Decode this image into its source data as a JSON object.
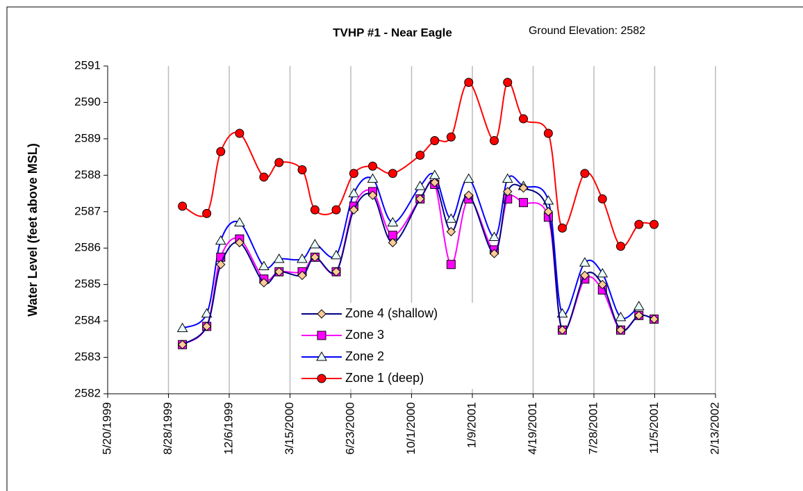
{
  "chart_data": {
    "type": "line",
    "title": "TVHP #1 - Near Eagle",
    "annotation": "Ground Elevation: 2582",
    "y_label": "Water Level (feet above MSL)",
    "x": [
      "9/20/1999",
      "10/30/1999",
      "11/22/1999",
      "12/23/1999",
      "2/1/2000",
      "2/26/2000",
      "4/4/2000",
      "4/25/2000",
      "5/30/2000",
      "6/28/2000",
      "7/29/2000",
      "8/31/2000",
      "10/15/2000",
      "11/8/2000",
      "12/5/2000",
      "1/3/2001",
      "2/14/2001",
      "3/8/2001",
      "4/3/2001",
      "5/14/2001",
      "6/6/2001",
      "7/13/2001",
      "8/11/2001",
      "9/10/2001",
      "10/10/2001",
      "11/4/2001"
    ],
    "xlim": [
      "5/20/1999",
      "2/13/2002"
    ],
    "xticks": [
      "5/20/1999",
      "8/28/1999",
      "12/6/1999",
      "3/15/2000",
      "6/23/2000",
      "10/1/2000",
      "1/9/2001",
      "4/19/2001",
      "7/28/2001",
      "11/5/2001",
      "2/13/2002"
    ],
    "ylim": [
      2582,
      2591
    ],
    "yticks": [
      2582,
      2583,
      2584,
      2585,
      2586,
      2587,
      2588,
      2589,
      2590,
      2591
    ],
    "grid": "x",
    "smooth": true,
    "series": [
      {
        "name": "Zone 4 (shallow)",
        "color": "#000080",
        "marker": "diamond",
        "marker_color": "#FFCC99",
        "values": [
          2583.35,
          2583.85,
          2585.55,
          2586.15,
          2585.05,
          2585.35,
          2585.25,
          2585.75,
          2585.35,
          2587.05,
          2587.45,
          2586.15,
          2587.35,
          2587.8,
          2586.45,
          2587.45,
          2585.85,
          2587.55,
          2587.65,
          2587.0,
          2583.75,
          2585.25,
          2585.0,
          2583.75,
          2584.15,
          2584.05
        ]
      },
      {
        "name": "Zone 3",
        "color": "#FF00FF",
        "marker": "square",
        "marker_color": "#FF00FF",
        "values": [
          2583.35,
          2583.85,
          2585.75,
          2586.25,
          2585.15,
          2585.35,
          2585.35,
          2585.75,
          2585.35,
          2587.15,
          2587.55,
          2586.35,
          2587.35,
          2587.75,
          2585.55,
          2587.35,
          2585.95,
          2587.35,
          2587.25,
          2586.85,
          2583.75,
          2585.15,
          2584.85,
          2583.75,
          2584.15,
          2584.05
        ]
      },
      {
        "name": "Zone 2",
        "color": "#0000FF",
        "marker": "triangle",
        "marker_color": "#E8FFFF",
        "values": [
          2583.8,
          2584.2,
          2586.2,
          2586.7,
          2585.5,
          2585.7,
          2585.7,
          2586.1,
          2585.8,
          2587.5,
          2587.9,
          2586.7,
          2587.7,
          2588.0,
          2586.8,
          2587.9,
          2586.3,
          2587.9,
          2587.7,
          2587.3,
          2584.2,
          2585.6,
          2585.3,
          2584.1,
          2584.4,
          null
        ]
      },
      {
        "name": "Zone 1 (deep)",
        "color": "#FF0000",
        "marker": "circle",
        "marker_color": "#FF0000",
        "values": [
          2587.15,
          2586.95,
          2588.65,
          2589.15,
          2587.95,
          2588.35,
          2588.15,
          2587.05,
          2587.05,
          2588.05,
          2588.25,
          2588.05,
          2588.55,
          2588.95,
          2589.05,
          2590.55,
          2588.95,
          2590.55,
          2589.55,
          2589.15,
          2586.55,
          2588.05,
          2587.35,
          2586.05,
          2586.65,
          2586.65
        ]
      }
    ]
  }
}
